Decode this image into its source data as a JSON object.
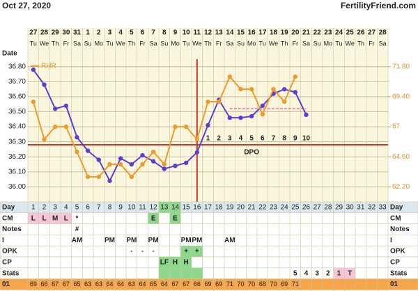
{
  "header": {
    "date": "Oct 27, 2020",
    "site": "FertilityFriend.com",
    "date_label": "Date"
  },
  "dates": [
    27,
    28,
    29,
    30,
    31,
    1,
    2,
    3,
    4,
    5,
    6,
    7,
    8,
    9,
    10,
    11,
    12,
    13,
    14,
    15,
    16,
    17,
    18,
    19,
    20,
    21,
    22,
    23,
    24,
    25,
    26,
    27,
    28
  ],
  "weekdays": [
    "Tu",
    "We",
    "Th",
    "Fr",
    "Sa",
    "Su",
    "Mo",
    "Tu",
    "We",
    "Th",
    "Fr",
    "Sa",
    "Su",
    "Mo",
    "Tu",
    "We",
    "Th",
    "Fr",
    "Sa",
    "Su",
    "Mo",
    "Tu",
    "We",
    "Th",
    "Fr",
    "Sa",
    "Su",
    "Mo",
    "Tu",
    "We",
    "Th",
    "Fr",
    "Sa"
  ],
  "chart_data": {
    "type": "line",
    "xlim": [
      0.5,
      33.5
    ],
    "ylim": [
      35.9,
      36.85
    ],
    "yticks": [
      {
        "value": 36.0,
        "label": "36.00"
      },
      {
        "value": 36.1,
        "label": "36.10"
      },
      {
        "value": 36.2,
        "label": "36.20"
      },
      {
        "value": 36.3,
        "label": "36.30"
      },
      {
        "value": 36.4,
        "label": "36.40"
      },
      {
        "value": 36.5,
        "label": "36.50"
      },
      {
        "value": 36.6,
        "label": "36.60"
      },
      {
        "value": 36.7,
        "label": "36.70"
      },
      {
        "value": 36.8,
        "label": "36.80"
      }
    ],
    "y2lim": [
      61,
      72.4
    ],
    "y2ticks": [
      {
        "value": 62.2,
        "label": "62.20"
      },
      {
        "value": 64.6,
        "label": "64.60"
      },
      67,
      {
        "value": 69.4,
        "label": "69.40"
      },
      {
        "value": 71.8,
        "label": "71.80"
      }
    ],
    "grid": true,
    "series": [
      {
        "name": "Temperature",
        "color": "#5b3fd0",
        "x": [
          1,
          2,
          3,
          4,
          5,
          6,
          7,
          8,
          9,
          10,
          11,
          12,
          13,
          14,
          15,
          16,
          17,
          18,
          19,
          20,
          21,
          22,
          23,
          24,
          25,
          26
        ],
        "values": [
          36.78,
          36.68,
          36.52,
          36.54,
          36.33,
          36.24,
          36.18,
          36.04,
          36.19,
          36.15,
          36.21,
          36.17,
          36.12,
          36.14,
          36.16,
          36.23,
          36.41,
          36.58,
          36.46,
          36.46,
          36.47,
          36.54,
          36.62,
          36.65,
          36.63,
          36.48
        ]
      },
      {
        "name": "RHR",
        "color": "#f09a2a",
        "axis": "y2",
        "x": [
          1,
          2,
          3,
          4,
          5,
          6,
          7,
          8,
          9,
          10,
          11,
          12,
          13,
          14,
          15,
          16,
          17,
          18,
          19,
          20,
          21,
          22,
          23,
          24,
          25
        ],
        "values": [
          69,
          66,
          67,
          67,
          65,
          63,
          63,
          64,
          64,
          63,
          64,
          65,
          64,
          67,
          67,
          66,
          69,
          69,
          71,
          70,
          70,
          68,
          70,
          69,
          71
        ]
      }
    ],
    "coverline": 36.28,
    "ovulation_day": 16,
    "dashed_line": {
      "y": 36.52,
      "x": [
        19,
        26
      ]
    },
    "dpo": {
      "label": "DPO",
      "x": [
        17,
        18,
        19,
        20,
        21,
        22,
        23,
        24,
        25,
        26
      ],
      "values": [
        1,
        2,
        3,
        4,
        5,
        6,
        7,
        8,
        9,
        10
      ]
    }
  },
  "table": {
    "rows": [
      {
        "label": "Day",
        "cells": [
          1,
          2,
          3,
          4,
          5,
          6,
          7,
          8,
          9,
          10,
          11,
          12,
          13,
          14,
          15,
          16,
          17,
          18,
          19,
          20,
          21,
          22,
          23,
          24,
          25,
          26,
          27,
          28,
          29,
          30,
          31,
          32,
          33
        ],
        "fills": [
          null,
          null,
          null,
          null,
          null,
          null,
          null,
          null,
          null,
          null,
          null,
          null,
          "#8ed88e",
          "#8ed88e",
          null,
          null,
          null,
          null,
          null,
          null,
          null,
          null,
          null,
          null,
          null,
          null,
          null,
          null,
          null,
          null,
          null,
          null,
          null
        ]
      },
      {
        "label": "CM",
        "cells": [
          "L",
          "L",
          "M",
          "L",
          "*",
          null,
          null,
          null,
          null,
          null,
          null,
          "E",
          null,
          "E",
          null,
          null,
          null,
          null,
          null,
          null,
          null,
          null,
          null,
          null,
          null,
          null,
          null,
          null,
          null,
          null,
          null,
          null,
          null
        ],
        "fills": [
          "#f4c6d8",
          "#f4c6d8",
          "#f4c6d8",
          "#f4c6d8",
          null,
          null,
          null,
          null,
          null,
          null,
          null,
          "#8ed88e",
          null,
          "#8ed88e",
          null,
          null,
          null,
          null,
          null,
          null,
          null,
          null,
          null,
          null,
          null,
          null,
          null,
          null,
          null,
          null,
          null,
          null,
          null
        ]
      },
      {
        "label": "Notes",
        "cells": [
          null,
          null,
          null,
          null,
          "#",
          null,
          null,
          null,
          null,
          null,
          null,
          null,
          null,
          null,
          null,
          null,
          null,
          null,
          null,
          null,
          null,
          null,
          null,
          null,
          null,
          null,
          null,
          null,
          null,
          null,
          null,
          null,
          null
        ]
      },
      {
        "label": "I",
        "cells": [
          null,
          null,
          null,
          null,
          "AM",
          null,
          null,
          "PM",
          null,
          "PM",
          null,
          "PM",
          null,
          null,
          "PM",
          "PM",
          null,
          null,
          "AM",
          null,
          null,
          null,
          null,
          null,
          null,
          null,
          null,
          null,
          null,
          null,
          null,
          null,
          null
        ]
      },
      {
        "label": "OPK",
        "cells": [
          null,
          null,
          null,
          null,
          null,
          null,
          null,
          null,
          null,
          "-",
          "-",
          "-",
          null,
          null,
          "+",
          "+",
          null,
          null,
          null,
          null,
          null,
          null,
          null,
          null,
          null,
          null,
          null,
          null,
          null,
          null,
          null,
          null,
          null
        ],
        "fills": [
          null,
          null,
          null,
          null,
          null,
          null,
          null,
          null,
          null,
          null,
          null,
          null,
          null,
          null,
          "#8ed88e",
          "#8ed88e",
          null,
          null,
          null,
          null,
          null,
          null,
          null,
          null,
          null,
          null,
          null,
          null,
          null,
          null,
          null,
          null,
          null
        ]
      },
      {
        "label": "CP",
        "cells": [
          null,
          null,
          null,
          null,
          null,
          null,
          null,
          null,
          null,
          null,
          null,
          null,
          "LF",
          "H",
          "H",
          null,
          null,
          null,
          null,
          null,
          null,
          null,
          null,
          null,
          null,
          null,
          null,
          null,
          null,
          null,
          null,
          null,
          null
        ],
        "fills": [
          null,
          null,
          null,
          null,
          null,
          null,
          null,
          null,
          null,
          null,
          null,
          null,
          "#8ed88e",
          "#8ed88e",
          "#8ed88e",
          null,
          null,
          null,
          null,
          null,
          null,
          null,
          null,
          null,
          null,
          null,
          null,
          null,
          null,
          null,
          null,
          null,
          null
        ]
      },
      {
        "label": "Stats",
        "cells": [
          null,
          null,
          null,
          null,
          null,
          null,
          null,
          null,
          null,
          null,
          null,
          null,
          null,
          null,
          null,
          null,
          null,
          null,
          null,
          null,
          null,
          null,
          null,
          null,
          "5",
          "4",
          "3",
          "2",
          "1",
          "T",
          null,
          null,
          null
        ],
        "fills": [
          null,
          null,
          null,
          null,
          null,
          null,
          null,
          null,
          null,
          null,
          null,
          null,
          "#8ed88e",
          "#8ed88e",
          "#8ed88e",
          "#8ed88e",
          null,
          null,
          null,
          null,
          null,
          null,
          null,
          null,
          null,
          null,
          null,
          null,
          "#f4c6d8",
          "#f4c6d8",
          null,
          null,
          null
        ]
      },
      {
        "label": "01",
        "cells": [
          69,
          66,
          67,
          67,
          65,
          63,
          63,
          64,
          64,
          63,
          64,
          65,
          64,
          67,
          67,
          66,
          69,
          69,
          71,
          70,
          70,
          68,
          70,
          69,
          71,
          null,
          null,
          null,
          null,
          null,
          null,
          null,
          null
        ]
      }
    ]
  }
}
